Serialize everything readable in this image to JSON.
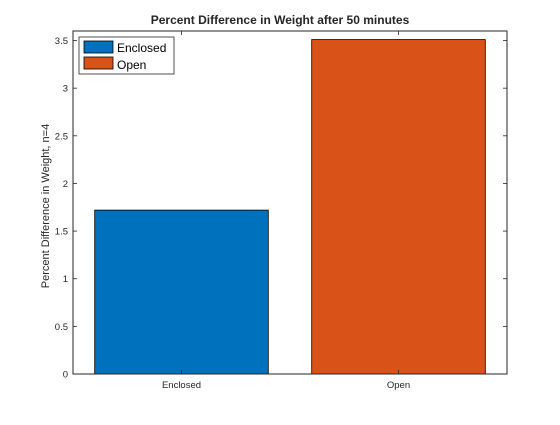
{
  "chart_data": {
    "type": "bar",
    "title": "Percent Difference in Weight after 50 minutes",
    "xlabel": "",
    "ylabel": "Percent Difference in Weight, n=4",
    "categories": [
      "Enclosed",
      "Open"
    ],
    "series": [
      {
        "name": "Enclosed",
        "values": [
          1.72,
          null
        ],
        "color": "#0072BD"
      },
      {
        "name": "Open",
        "values": [
          null,
          3.51
        ],
        "color": "#D95319"
      }
    ],
    "ylim": [
      0,
      3.6
    ],
    "yticks": [
      0,
      0.5,
      1,
      1.5,
      2,
      2.5,
      3,
      3.5
    ],
    "ytick_labels": [
      "0",
      "0.5",
      "1",
      "1.5",
      "2",
      "2.5",
      "3",
      "3.5"
    ],
    "grid": false,
    "legend": {
      "placement": "top-left",
      "entries": [
        {
          "label": "Enclosed",
          "color": "#0072BD"
        },
        {
          "label": "Open",
          "color": "#D95319"
        }
      ]
    }
  }
}
